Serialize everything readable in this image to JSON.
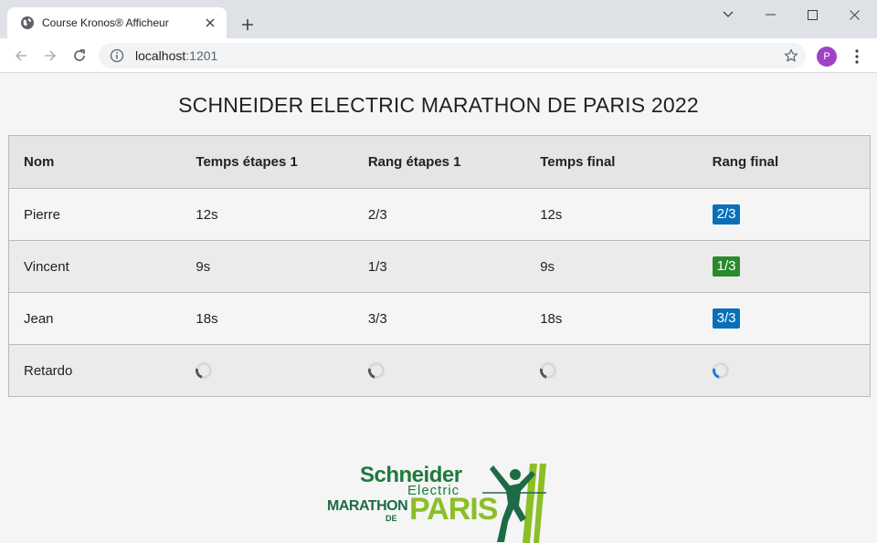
{
  "browser": {
    "tab_title": "Course Kronos® Afficheur",
    "url_host": "localhost",
    "url_port": ":1201",
    "profile_initial": "P"
  },
  "page": {
    "title": "SCHNEIDER ELECTRIC MARATHON DE PARIS 2022"
  },
  "table": {
    "headers": [
      "Nom",
      "Temps étapes 1",
      "Rang étapes 1",
      "Temps final",
      "Rang final"
    ],
    "rows": [
      {
        "name": "Pierre",
        "stage_time": "12s",
        "stage_rank": "2/3",
        "final_time": "12s",
        "final_rank": "2/3",
        "final_rank_color": "#0a6fb7"
      },
      {
        "name": "Vincent",
        "stage_time": "9s",
        "stage_rank": "1/3",
        "final_time": "9s",
        "final_rank": "1/3",
        "final_rank_color": "#2b8a2b"
      },
      {
        "name": "Jean",
        "stage_time": "18s",
        "stage_rank": "3/3",
        "final_time": "18s",
        "final_rank": "3/3",
        "final_rank_color": "#0a6fb7"
      },
      {
        "name": "Retardo",
        "stage_time": null,
        "stage_rank": null,
        "final_time": null,
        "final_rank": null
      }
    ]
  },
  "logo": {
    "line1": "Schneider",
    "line2": "Electric",
    "line3": "MARATHON",
    "line4": "DE",
    "line5": "PARIS"
  },
  "colors": {
    "badge_blue": "#0a6fb7",
    "badge_green": "#2b8a2b",
    "logo_green": "#1d7a3a",
    "logo_lime": "#8cbf26"
  }
}
